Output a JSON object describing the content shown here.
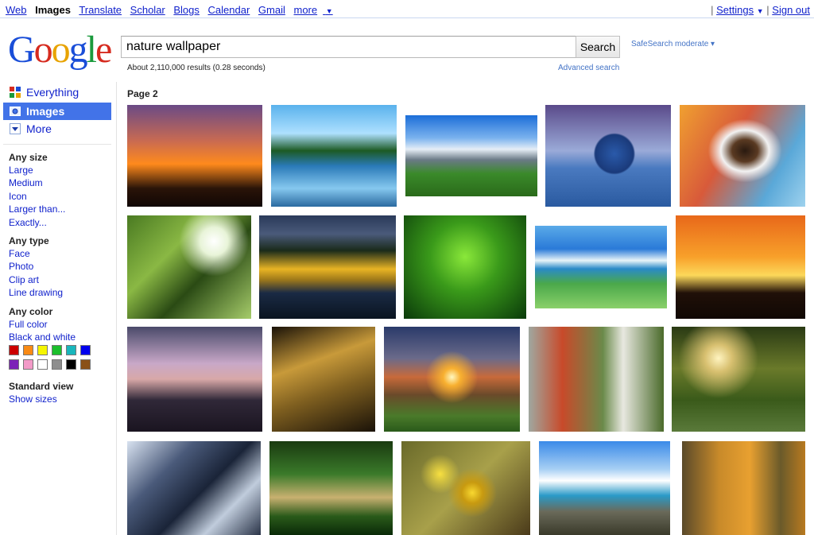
{
  "topnav": {
    "items": [
      "Web",
      "Images",
      "Translate",
      "Scholar",
      "Blogs",
      "Calendar",
      "Gmail",
      "more"
    ],
    "more_arrow": "▼",
    "settings": "Settings",
    "settings_arrow": "▼",
    "signout": "Sign out",
    "sep": "|"
  },
  "logo": {
    "text": "Google"
  },
  "search": {
    "query": "nature wallpaper",
    "button": "Search",
    "safesearch": "SafeSearch moderate ▾",
    "stats": "About 2,110,000 results (0.28 seconds)",
    "advanced": "Advanced search"
  },
  "leftnav": {
    "items": [
      {
        "label": "Everything",
        "icon": "everything-icon"
      },
      {
        "label": "Images",
        "icon": "images-icon",
        "selected": true
      },
      {
        "label": "More",
        "icon": "more-dropdown-icon"
      }
    ],
    "size_title": "Any size",
    "size_options": [
      "Large",
      "Medium",
      "Icon",
      "Larger than...",
      "Exactly..."
    ],
    "type_title": "Any type",
    "type_options": [
      "Face",
      "Photo",
      "Clip art",
      "Line drawing"
    ],
    "color_title": "Any color",
    "color_options": [
      "Full color",
      "Black and white"
    ],
    "swatches": [
      "#cc0000",
      "#f88a14",
      "#f5f500",
      "#1cbf2c",
      "#19b6bc",
      "#0000ee",
      "#7c22b7",
      "#f39ac8",
      "#ffffff",
      "#8e8e8e",
      "#000000",
      "#8a5117"
    ],
    "view_title": "Standard view",
    "view_option": "Show sizes"
  },
  "results": {
    "page_label": "Page 2",
    "thumbnails": [
      {
        "subject": "sunset silhouette",
        "bg": "linear-gradient(#6a4a86 0%, #c86a52 35%, #ff8a1c 58%, #2a1408 82%, #100604 100%)"
      },
      {
        "subject": "lake reflection with pines",
        "bg": "linear-gradient(#5ab2ec 0%, #aee0ff 28%, #1c5a24 45%, #2a7ab8 60%, #86c8ef 82%, #2a6aa0 100%)"
      },
      {
        "subject": "snowy mountains",
        "bg": "linear-gradient(#1c6ed8 0%, #7ab2ee 28%, #e6eef6 42%, #6a7a86 55%, #3a8a2a 72%, #2a6a1a 100%)"
      },
      {
        "subject": "planet earth in water",
        "bg": "radial-gradient(circle at 55% 48%, #2a5aaa 0%, #1a3a7a 22%, transparent 24%), linear-gradient(#5a4a8a 0%, #9aaad8 45%, #4a7ac0 62%, #2a5aa0 100%)"
      },
      {
        "subject": "beagle puppy",
        "bg": "radial-gradient(ellipse at 52% 45%, #2a1a10 0%, #5a3a22 14%, #f2f2f2 26%, transparent 40%), linear-gradient(120deg, #f0a030 0%, #d85a3a 40%, #5aa8d8 75%, #9ed2ee 100%)"
      },
      {
        "subject": "tree canopy",
        "bg": "radial-gradient(circle at 70% 25%, #ffffff 0%, #e8f4d8 12%, transparent 30%), linear-gradient(135deg, #4a7a22 0%, #8ab844 35%, #2a4a14 60%, #a6cc6a 100%)"
      },
      {
        "subject": "autumn lake",
        "bg": "linear-gradient(#2a3a5a 0%, #4a5a7a 18%, #1a2a1a 34%, #e8b424 52%, #a07a1a 62%, #1a2a44 75%, #0a1420 100%)"
      },
      {
        "subject": "green fern",
        "bg": "radial-gradient(circle at 50% 40%, #8ae83a 0%, #3a9a1a 40%, #0a3a0a 100%)"
      },
      {
        "subject": "golf course ocean",
        "bg": "linear-gradient(#5aaae8 0%, #2a7ad8 28%, #e8f4f8 42%, #2a8ac8 52%, #4aa84a 70%, #8ad06a 100%)"
      },
      {
        "subject": "palm sunset",
        "bg": "linear-gradient(#e8681a 0%, #f8a02a 40%, #fcd85a 58%, #201008 75%, #100804 100%)"
      },
      {
        "subject": "lakeside tree dusk",
        "bg": "linear-gradient(#4a4a6a 0%, #c8a8c8 35%, #d8a8a8 50%, #302838 70%, #1a1420 100%)"
      },
      {
        "subject": "wooden boats",
        "bg": "linear-gradient(160deg, #1a1208 0%, #c89a3a 35%, #806020 60%, #1a1208 100%)"
      },
      {
        "subject": "sunset over valley",
        "bg": "radial-gradient(circle at 50% 48%, #fff8c0 0%, #f8b030 10%, transparent 30%), linear-gradient(#2a3a6a 0%, #6a6a8a 30%, #c86a3a 48%, #6a4a2a 65%, #4a7a2a 85%, #2a5a1a 100%)"
      },
      {
        "subject": "autumn forest fence",
        "bg": "linear-gradient(90deg, #a0a8a0 0%, #c84a2a 25%, #6a8a4a 55%, #e8e8e0 70%, #4a6a2a 100%)"
      },
      {
        "subject": "sunlit forest path",
        "bg": "radial-gradient(circle at 35% 30%, #fff4c0 0%, #d8c070 12%, transparent 35%), linear-gradient(#2a3a14 0%, #6a7a2a 40%, #3a5a1a 70%, #5a7a3a 100%)"
      },
      {
        "subject": "frozen stream",
        "bg": "linear-gradient(135deg, #d8e2f0 0%, #4a5a7a 30%, #1a2438 55%, #c0ccdc 75%, #2a3448 100%)"
      },
      {
        "subject": "jungle boardwalk",
        "bg": "linear-gradient(#1a3a10 0%, #3a7a2a 35%, #c8b070 60%, #2a5a1a 80%, #0a2a08 100%)"
      },
      {
        "subject": "yellow flowers",
        "bg": "radial-gradient(circle at 55% 55%, #f8d830 0%, #c89a10 12%, transparent 28%), radial-gradient(circle at 30% 35%, #f8e040 0%, transparent 18%), linear-gradient(135deg, #6a6a2a 0%, #a8a04a 50%, #4a3a1a 100%)"
      },
      {
        "subject": "tropical beach palm",
        "bg": "linear-gradient(#3a8ae8 0%, #a8d0f4 30%, #ffffff 42%, #2a9ac8 58%, #6a6a5a 75%, #3a3a2a 100%)"
      },
      {
        "subject": "autumn woods",
        "bg": "linear-gradient(90deg, #5a4a2a 0%, #c88a2a 30%, #e8a030 55%, #6a5a2a 80%, #b87a20 100%)"
      }
    ]
  }
}
